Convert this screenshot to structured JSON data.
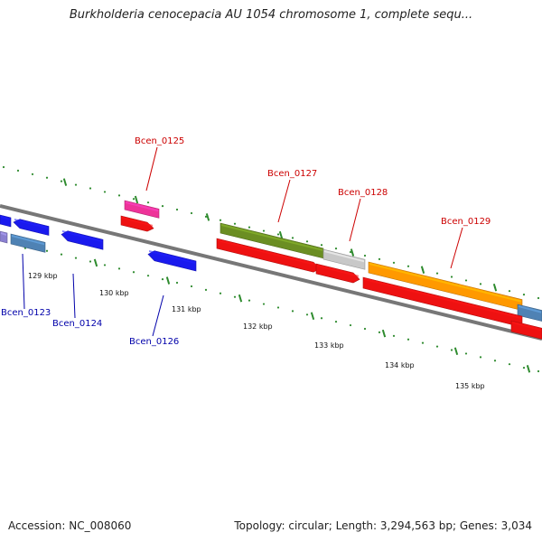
{
  "title": "Burkholderia cenocepacia AU 1054 chromosome 1, complete sequ...",
  "footer": {
    "accession": "Accession: NC_008060",
    "topology": "Topology: circular; Length: 3,294,563 bp; Genes: 3,034"
  },
  "colors": {
    "backbone": "#777777",
    "tick_green": "#2e8b2e",
    "label_forward": "#cc0000",
    "label_reverse": "#0000aa"
  },
  "axis": {
    "tick_labels": [
      "129 kbp",
      "130 kbp",
      "131 kbp",
      "132 kbp",
      "133 kbp",
      "134 kbp",
      "135 kbp"
    ]
  },
  "genes": {
    "labeled": [
      {
        "name": "Bcen_0123",
        "strand": "reverse"
      },
      {
        "name": "Bcen_0124",
        "strand": "reverse"
      },
      {
        "name": "Bcen_0125",
        "strand": "forward"
      },
      {
        "name": "Bcen_0126",
        "strand": "reverse"
      },
      {
        "name": "Bcen_0127",
        "strand": "forward"
      },
      {
        "name": "Bcen_0128",
        "strand": "forward"
      },
      {
        "name": "Bcen_0129",
        "strand": "forward"
      }
    ],
    "feature_colors": {
      "cds_reverse": "#1a1aee",
      "cds_forward": "#ee1111",
      "gene_0125": "#ee3399",
      "gene_0127": "#6b8e23",
      "gene_0128": "#c8c8c8",
      "gene_0129": "#ff9900",
      "steelblue": "#4f82b4",
      "lavender": "#8a7fd0"
    }
  }
}
